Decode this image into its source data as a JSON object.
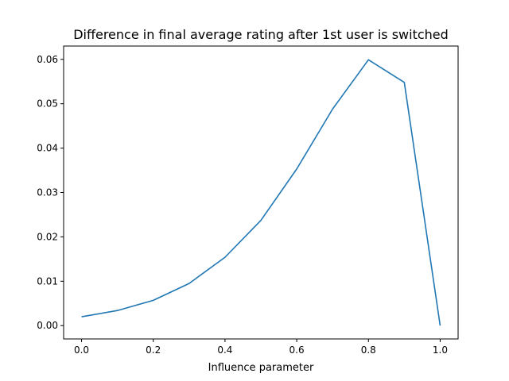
{
  "chart_data": {
    "type": "line",
    "title": "Difference in final average rating after 1st user is switched",
    "xlabel": "Influence parameter",
    "ylabel": "",
    "xlim": [
      -0.05,
      1.05
    ],
    "ylim": [
      -0.003,
      0.063
    ],
    "xticks": [
      0.0,
      0.2,
      0.4,
      0.6,
      0.8,
      1.0
    ],
    "xtick_labels": [
      "0.0",
      "0.2",
      "0.4",
      "0.6",
      "0.8",
      "1.0"
    ],
    "yticks": [
      0.0,
      0.01,
      0.02,
      0.03,
      0.04,
      0.05,
      0.06
    ],
    "ytick_labels": [
      "0.00",
      "0.01",
      "0.02",
      "0.03",
      "0.04",
      "0.05",
      "0.06"
    ],
    "grid": false,
    "series": [
      {
        "color": "#1f77b4",
        "x": [
          0.0,
          0.1,
          0.2,
          0.3,
          0.4,
          0.5,
          0.6,
          0.7,
          0.8,
          0.9,
          1.0
        ],
        "y": [
          0.002,
          0.0034,
          0.0057,
          0.0095,
          0.0154,
          0.0237,
          0.0353,
          0.0488,
          0.0599,
          0.0548,
          0.0
        ]
      }
    ]
  }
}
